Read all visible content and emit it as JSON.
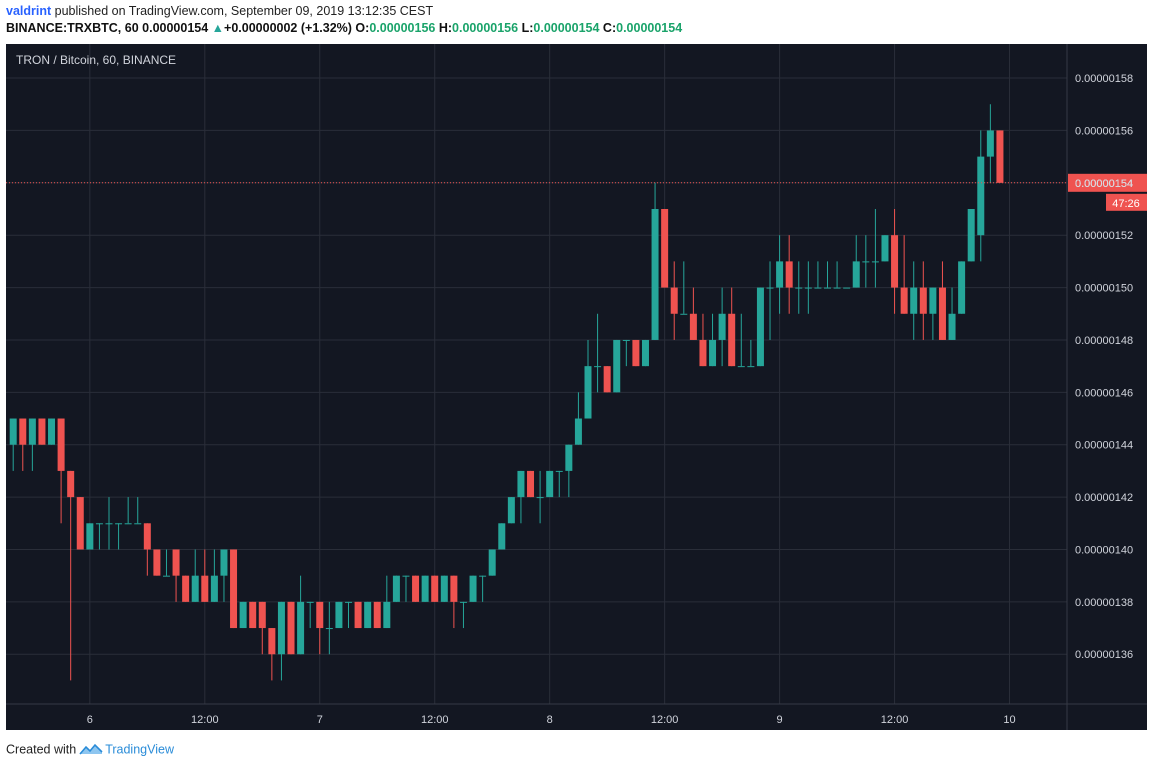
{
  "header": {
    "user": "valdrint",
    "published": " published on TradingView.com, September 09, 2019 13:12:35 CEST",
    "symbol_interval": "BINANCE:TRXBTC, 60",
    "last": "0.00000154",
    "change": "+0.00000002 (+1.32%)",
    "o_label": "O:",
    "o": "0.00000156",
    "h_label": "H:",
    "h": "0.00000156",
    "l_label": "L:",
    "l": "0.00000154",
    "c_label": "C:",
    "c": "0.00000154"
  },
  "legend_title": "TRON / Bitcoin, 60, BINANCE",
  "footer": {
    "created": "Created with",
    "brand": "TradingView"
  },
  "colors": {
    "background": "#131722",
    "grid": "#2a2e39",
    "up": "#26a69a",
    "down": "#ef5350",
    "axis_text": "#d1d4dc"
  },
  "chart_data": {
    "type": "candlestick",
    "title": "TRON / Bitcoin, 60, BINANCE",
    "y_ticks": [
      "0.00000158",
      "0.00000156",
      "0.00000154",
      "0.00000152",
      "0.00000150",
      "0.00000148",
      "0.00000146",
      "0.00000144",
      "0.00000142",
      "0.00000140",
      "0.00000138",
      "0.00000136"
    ],
    "ylim": [
      1.341,
      1.593
    ],
    "y_scale_unit": "1e-6 BTC",
    "x_ticks": [
      "6",
      "12:00",
      "7",
      "12:00",
      "8",
      "12:00",
      "9",
      "12:00",
      "10"
    ],
    "x_tick_index": [
      8,
      20,
      32,
      44,
      56,
      68,
      80,
      92,
      104
    ],
    "current_price": {
      "value": 1.54,
      "label": "0.00000154",
      "countdown": "47:26"
    },
    "ohlc": [
      [
        1.44,
        1.45,
        1.43,
        1.45
      ],
      [
        1.45,
        1.45,
        1.43,
        1.44
      ],
      [
        1.44,
        1.45,
        1.43,
        1.45
      ],
      [
        1.45,
        1.45,
        1.44,
        1.44
      ],
      [
        1.44,
        1.45,
        1.44,
        1.45
      ],
      [
        1.45,
        1.45,
        1.41,
        1.43
      ],
      [
        1.43,
        1.43,
        1.35,
        1.42
      ],
      [
        1.42,
        1.42,
        1.4,
        1.4
      ],
      [
        1.4,
        1.41,
        1.4,
        1.41
      ],
      [
        1.41,
        1.41,
        1.4,
        1.41
      ],
      [
        1.41,
        1.42,
        1.4,
        1.41
      ],
      [
        1.41,
        1.41,
        1.4,
        1.41
      ],
      [
        1.41,
        1.42,
        1.41,
        1.41
      ],
      [
        1.41,
        1.42,
        1.41,
        1.41
      ],
      [
        1.41,
        1.41,
        1.39,
        1.4
      ],
      [
        1.4,
        1.4,
        1.39,
        1.39
      ],
      [
        1.39,
        1.4,
        1.39,
        1.39
      ],
      [
        1.4,
        1.4,
        1.38,
        1.39
      ],
      [
        1.39,
        1.39,
        1.38,
        1.38
      ],
      [
        1.38,
        1.4,
        1.38,
        1.39
      ],
      [
        1.39,
        1.4,
        1.38,
        1.38
      ],
      [
        1.38,
        1.4,
        1.38,
        1.39
      ],
      [
        1.39,
        1.4,
        1.38,
        1.4
      ],
      [
        1.4,
        1.4,
        1.37,
        1.37
      ],
      [
        1.37,
        1.38,
        1.37,
        1.38
      ],
      [
        1.38,
        1.38,
        1.37,
        1.37
      ],
      [
        1.38,
        1.38,
        1.36,
        1.37
      ],
      [
        1.37,
        1.37,
        1.35,
        1.36
      ],
      [
        1.36,
        1.38,
        1.35,
        1.38
      ],
      [
        1.38,
        1.38,
        1.36,
        1.36
      ],
      [
        1.36,
        1.39,
        1.36,
        1.38
      ],
      [
        1.38,
        1.38,
        1.37,
        1.38
      ],
      [
        1.38,
        1.38,
        1.36,
        1.37
      ],
      [
        1.37,
        1.38,
        1.36,
        1.37
      ],
      [
        1.37,
        1.38,
        1.37,
        1.38
      ],
      [
        1.38,
        1.38,
        1.37,
        1.38
      ],
      [
        1.38,
        1.38,
        1.37,
        1.37
      ],
      [
        1.37,
        1.38,
        1.37,
        1.38
      ],
      [
        1.38,
        1.38,
        1.37,
        1.37
      ],
      [
        1.37,
        1.39,
        1.37,
        1.38
      ],
      [
        1.38,
        1.39,
        1.38,
        1.39
      ],
      [
        1.39,
        1.39,
        1.38,
        1.39
      ],
      [
        1.39,
        1.39,
        1.38,
        1.38
      ],
      [
        1.38,
        1.39,
        1.38,
        1.39
      ],
      [
        1.39,
        1.39,
        1.38,
        1.38
      ],
      [
        1.38,
        1.39,
        1.38,
        1.39
      ],
      [
        1.39,
        1.39,
        1.37,
        1.38
      ],
      [
        1.38,
        1.38,
        1.37,
        1.38
      ],
      [
        1.38,
        1.39,
        1.38,
        1.39
      ],
      [
        1.39,
        1.39,
        1.38,
        1.39
      ],
      [
        1.39,
        1.4,
        1.39,
        1.4
      ],
      [
        1.4,
        1.41,
        1.4,
        1.41
      ],
      [
        1.41,
        1.42,
        1.41,
        1.42
      ],
      [
        1.42,
        1.43,
        1.41,
        1.43
      ],
      [
        1.43,
        1.43,
        1.42,
        1.42
      ],
      [
        1.42,
        1.43,
        1.41,
        1.42
      ],
      [
        1.42,
        1.43,
        1.42,
        1.43
      ],
      [
        1.43,
        1.43,
        1.42,
        1.43
      ],
      [
        1.43,
        1.44,
        1.42,
        1.44
      ],
      [
        1.44,
        1.46,
        1.44,
        1.45
      ],
      [
        1.45,
        1.48,
        1.45,
        1.47
      ],
      [
        1.47,
        1.49,
        1.46,
        1.47
      ],
      [
        1.47,
        1.47,
        1.46,
        1.46
      ],
      [
        1.46,
        1.48,
        1.46,
        1.48
      ],
      [
        1.48,
        1.48,
        1.47,
        1.48
      ],
      [
        1.48,
        1.48,
        1.47,
        1.47
      ],
      [
        1.47,
        1.48,
        1.47,
        1.48
      ],
      [
        1.48,
        1.54,
        1.48,
        1.53
      ],
      [
        1.53,
        1.53,
        1.5,
        1.5
      ],
      [
        1.5,
        1.51,
        1.48,
        1.49
      ],
      [
        1.49,
        1.51,
        1.49,
        1.49
      ],
      [
        1.49,
        1.5,
        1.48,
        1.48
      ],
      [
        1.48,
        1.49,
        1.47,
        1.47
      ],
      [
        1.47,
        1.49,
        1.47,
        1.48
      ],
      [
        1.48,
        1.5,
        1.47,
        1.49
      ],
      [
        1.49,
        1.5,
        1.47,
        1.47
      ],
      [
        1.47,
        1.49,
        1.47,
        1.47
      ],
      [
        1.47,
        1.48,
        1.47,
        1.47
      ],
      [
        1.47,
        1.5,
        1.47,
        1.5
      ],
      [
        1.5,
        1.51,
        1.48,
        1.5
      ],
      [
        1.5,
        1.52,
        1.49,
        1.51
      ],
      [
        1.51,
        1.52,
        1.49,
        1.5
      ],
      [
        1.5,
        1.51,
        1.49,
        1.5
      ],
      [
        1.5,
        1.51,
        1.49,
        1.5
      ],
      [
        1.5,
        1.51,
        1.5,
        1.5
      ],
      [
        1.5,
        1.51,
        1.5,
        1.5
      ],
      [
        1.5,
        1.51,
        1.5,
        1.5
      ],
      [
        1.5,
        1.5,
        1.5,
        1.5
      ],
      [
        1.5,
        1.52,
        1.5,
        1.51
      ],
      [
        1.51,
        1.52,
        1.5,
        1.51
      ],
      [
        1.51,
        1.53,
        1.5,
        1.51
      ],
      [
        1.51,
        1.52,
        1.51,
        1.52
      ],
      [
        1.52,
        1.53,
        1.49,
        1.5
      ],
      [
        1.5,
        1.52,
        1.49,
        1.49
      ],
      [
        1.49,
        1.51,
        1.48,
        1.5
      ],
      [
        1.5,
        1.51,
        1.48,
        1.49
      ],
      [
        1.49,
        1.5,
        1.48,
        1.5
      ],
      [
        1.5,
        1.51,
        1.48,
        1.48
      ],
      [
        1.48,
        1.5,
        1.48,
        1.49
      ],
      [
        1.49,
        1.51,
        1.49,
        1.51
      ],
      [
        1.51,
        1.53,
        1.51,
        1.53
      ],
      [
        1.52,
        1.56,
        1.51,
        1.55
      ],
      [
        1.55,
        1.57,
        1.54,
        1.56
      ],
      [
        1.56,
        1.56,
        1.54,
        1.54
      ]
    ]
  }
}
